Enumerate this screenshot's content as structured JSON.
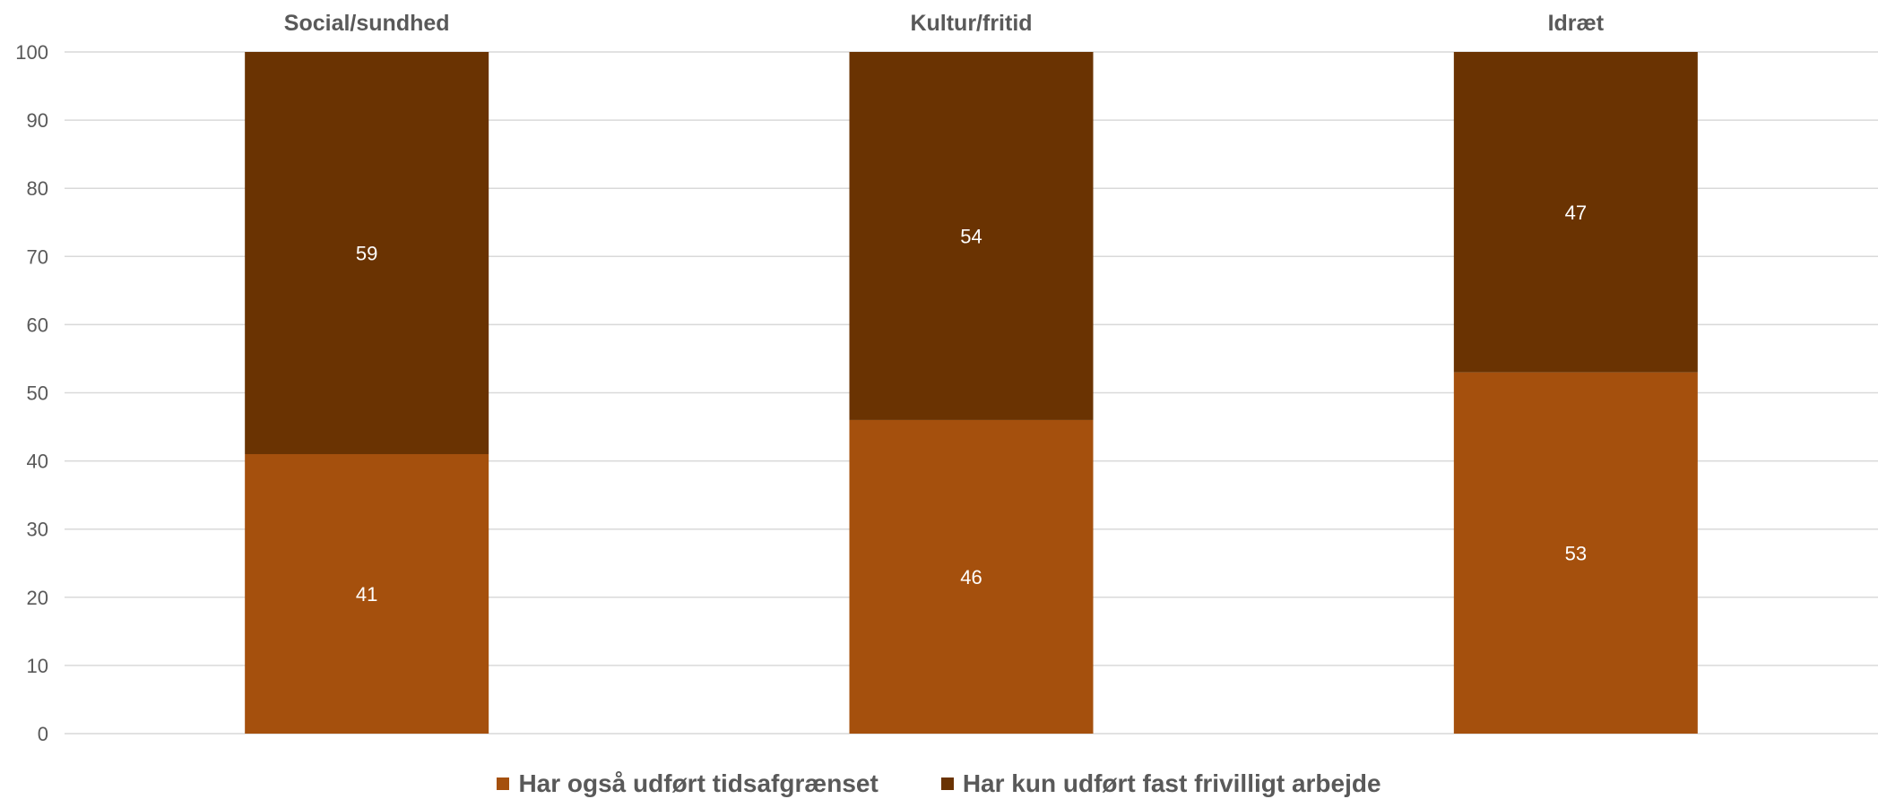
{
  "chart_data": {
    "type": "bar",
    "stacked": true,
    "percent": true,
    "categories": [
      "Social/sundhed",
      "Kultur/fritid",
      "Idræt"
    ],
    "series": [
      {
        "name": "Har også udført tidsafgrænset",
        "values": [
          41,
          46,
          53
        ],
        "color": "#A5500D"
      },
      {
        "name": "Har kun udført fast frivilligt arbejde",
        "values": [
          59,
          54,
          47
        ],
        "color": "#6A3302"
      }
    ],
    "ylim": [
      0,
      100
    ],
    "yticks": [
      0,
      10,
      20,
      30,
      40,
      50,
      60,
      70,
      80,
      90,
      100
    ],
    "category_label_position": "top",
    "legend_position": "bottom",
    "grid": true,
    "xlabel": "",
    "ylabel": "",
    "title": ""
  }
}
